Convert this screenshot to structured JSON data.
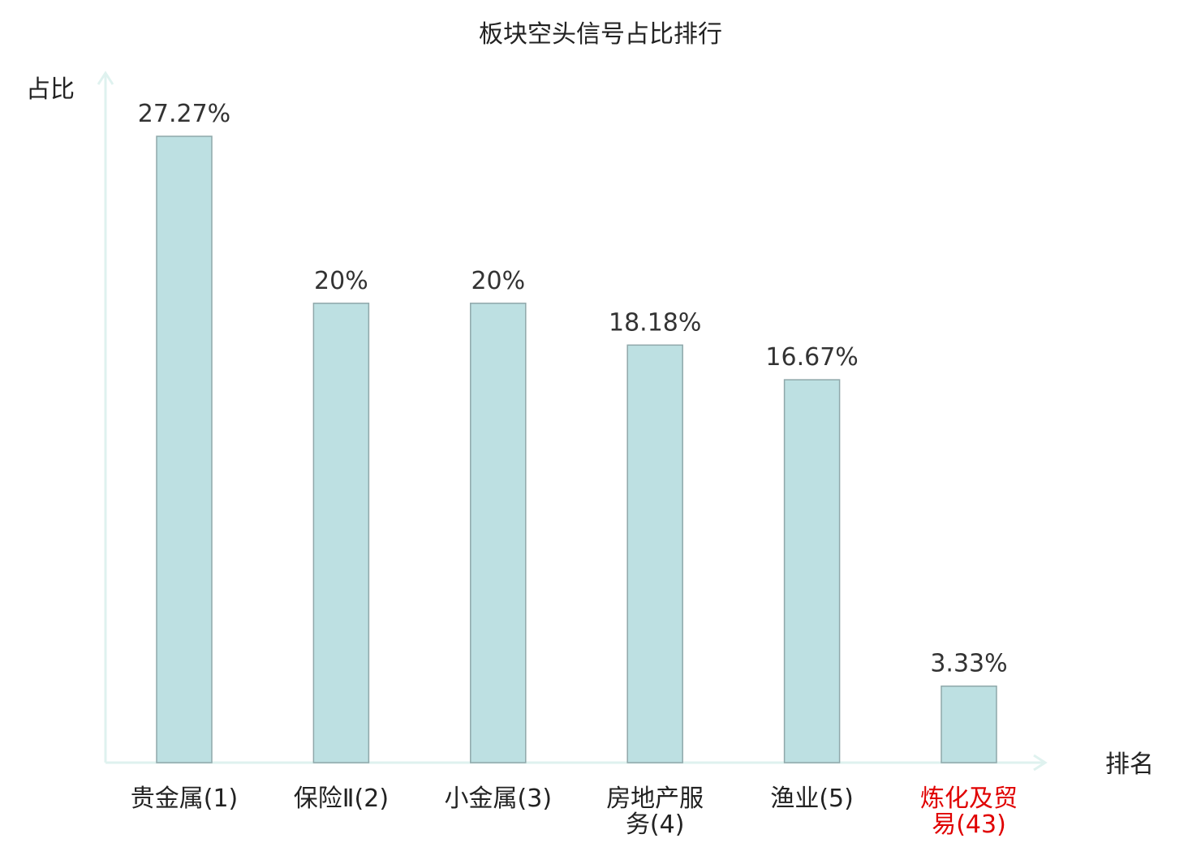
{
  "chart_data": {
    "type": "bar",
    "title": "板块空头信号占比排行",
    "ylabel": "占比",
    "xlabel": "排名",
    "categories": [
      {
        "name": "贵金属",
        "rank": "(1)",
        "lines": [
          "贵金属(1)"
        ],
        "highlight": false
      },
      {
        "name": "保险Ⅱ",
        "rank": "(2)",
        "lines": [
          "保险Ⅱ(2)"
        ],
        "highlight": false
      },
      {
        "name": "小金属",
        "rank": "(3)",
        "lines": [
          "小金属(3)"
        ],
        "highlight": false
      },
      {
        "name": "房地产服务",
        "rank": "(4)",
        "lines": [
          "房地产服",
          "务(4)"
        ],
        "highlight": false
      },
      {
        "name": "渔业",
        "rank": "(5)",
        "lines": [
          "渔业(5)"
        ],
        "highlight": false
      },
      {
        "name": "炼化及贸易",
        "rank": "(43)",
        "lines": [
          "炼化及贸",
          "易(43)"
        ],
        "highlight": true
      }
    ],
    "values": [
      27.27,
      20,
      20,
      18.18,
      16.67,
      3.33
    ],
    "value_labels": [
      "27.27%",
      "20%",
      "20%",
      "18.18%",
      "16.67%",
      "3.33%"
    ],
    "ylim": [
      0,
      27.27
    ],
    "grid": false,
    "legend": "none"
  },
  "colors": {
    "bar_fill": "#bde0e2",
    "bar_stroke": "#8fa8aa",
    "axis": "#dff2ef",
    "text": "#222222",
    "value_text": "#333333",
    "highlight_text": "#e00000"
  }
}
